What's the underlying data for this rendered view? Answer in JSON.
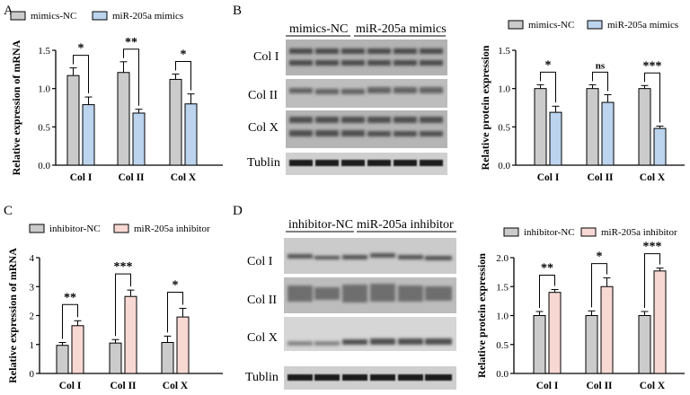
{
  "panels": {
    "A": "A",
    "B": "B",
    "C": "C",
    "D": "D"
  },
  "blots": {
    "B": {
      "group_labels": [
        "mimics-NC",
        "miR-205a mimics"
      ],
      "row_labels": [
        "Col I",
        "Col II",
        "Col X",
        "Tublin"
      ]
    },
    "D": {
      "group_labels": [
        "inhibitor-NC",
        "miR-205a inhibitor"
      ],
      "row_labels": [
        "Col I",
        "Col II",
        "Col X",
        "Tublin"
      ]
    }
  },
  "colors": {
    "control": "#cbcbcb",
    "mimics": "#bcd4ee",
    "inhibitor": "#f8d8d3"
  },
  "chart_data": [
    {
      "id": "A",
      "type": "bar",
      "categories": [
        "Col I",
        "Col II",
        "Col X"
      ],
      "series": [
        {
          "name": "mimics-NC",
          "values": [
            1.17,
            1.21,
            1.12
          ],
          "errors": [
            0.1,
            0.14,
            0.07
          ],
          "color": "#cbcbcb"
        },
        {
          "name": "miR-205a mimics",
          "values": [
            0.79,
            0.68,
            0.8
          ],
          "errors": [
            0.1,
            0.05,
            0.13
          ],
          "color": "#bcd4ee"
        }
      ],
      "significance": [
        "*",
        "**",
        "*"
      ],
      "ylabel": "Relative expression of mRNA",
      "ylim": [
        0,
        1.5
      ],
      "yticks": [
        "0.0",
        "0.5",
        "1.0",
        "1.5"
      ],
      "legend": "top"
    },
    {
      "id": "B",
      "type": "bar",
      "categories": [
        "Col I",
        "Col II",
        "Col X"
      ],
      "series": [
        {
          "name": "mimics-NC",
          "values": [
            1.0,
            1.0,
            1.0
          ],
          "errors": [
            0.05,
            0.05,
            0.04
          ],
          "color": "#cbcbcb"
        },
        {
          "name": "miR-205a mimics",
          "values": [
            0.69,
            0.82,
            0.48
          ],
          "errors": [
            0.08,
            0.1,
            0.03
          ],
          "color": "#bcd4ee"
        }
      ],
      "significance": [
        "*",
        "ns",
        "***"
      ],
      "ylabel": "Relative  protein expression",
      "ylim": [
        0,
        1.5
      ],
      "yticks": [
        "0.0",
        "0.5",
        "1.0",
        "1.5"
      ],
      "legend": "top"
    },
    {
      "id": "C",
      "type": "bar",
      "categories": [
        "Col I",
        "Col II",
        "Col X"
      ],
      "series": [
        {
          "name": "inhibitor-NC",
          "values": [
            0.97,
            1.05,
            1.07
          ],
          "errors": [
            0.1,
            0.12,
            0.22
          ],
          "color": "#cbcbcb"
        },
        {
          "name": "miR-205a inhibitor",
          "values": [
            1.65,
            2.66,
            1.95
          ],
          "errors": [
            0.17,
            0.22,
            0.3
          ],
          "color": "#f8d8d3"
        }
      ],
      "significance": [
        "**",
        "***",
        "*"
      ],
      "ylabel": "Relative expression of mRNA",
      "ylim": [
        0,
        4
      ],
      "yticks": [
        "0",
        "1",
        "2",
        "3",
        "4"
      ],
      "legend": "top"
    },
    {
      "id": "D",
      "type": "bar",
      "categories": [
        "Col I",
        "Col II",
        "Col X"
      ],
      "series": [
        {
          "name": "inhibitor-NC",
          "values": [
            1.0,
            1.0,
            1.0
          ],
          "errors": [
            0.07,
            0.08,
            0.07
          ],
          "color": "#cbcbcb"
        },
        {
          "name": "miR-205a inhibitor",
          "values": [
            1.4,
            1.5,
            1.77
          ],
          "errors": [
            0.05,
            0.15,
            0.05
          ],
          "color": "#f8d8d3"
        }
      ],
      "significance": [
        "**",
        "*",
        "***"
      ],
      "ylabel": "Relative  protein expression",
      "ylim": [
        0,
        2.0
      ],
      "yticks": [
        "0.0",
        "0.5",
        "1.0",
        "1.5",
        "2.0"
      ],
      "legend": "top"
    }
  ]
}
